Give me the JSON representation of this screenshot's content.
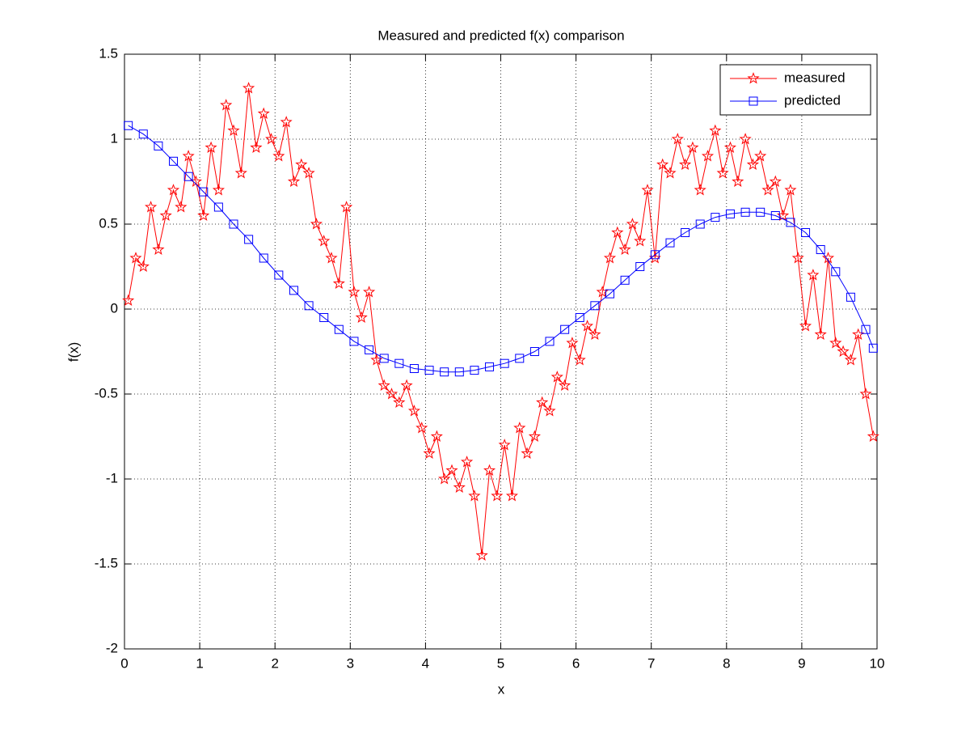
{
  "chart_data": {
    "type": "line",
    "title": "Measured and predicted f(x) comparison",
    "x_label": "x",
    "y_label": "f(x)",
    "xlim": [
      0,
      10
    ],
    "ylim": [
      -2,
      1.5
    ],
    "xticks": [
      0,
      1,
      2,
      3,
      4,
      5,
      6,
      7,
      8,
      9,
      10
    ],
    "yticks": [
      -2,
      -1.5,
      -1,
      -0.5,
      0,
      0.5,
      1,
      1.5
    ],
    "grid": true,
    "legend": "upper right",
    "series": [
      {
        "name": "measured",
        "color": "#ff0000",
        "marker": "star",
        "x": [
          0.05,
          0.15,
          0.25,
          0.35,
          0.45,
          0.55,
          0.65,
          0.75,
          0.85,
          0.95,
          1.05,
          1.15,
          1.25,
          1.35,
          1.45,
          1.55,
          1.65,
          1.75,
          1.85,
          1.95,
          2.05,
          2.15,
          2.25,
          2.35,
          2.45,
          2.55,
          2.65,
          2.75,
          2.85,
          2.95,
          3.05,
          3.15,
          3.25,
          3.35,
          3.45,
          3.55,
          3.65,
          3.75,
          3.85,
          3.95,
          4.05,
          4.15,
          4.25,
          4.35,
          4.45,
          4.55,
          4.65,
          4.75,
          4.85,
          4.95,
          5.05,
          5.15,
          5.25,
          5.35,
          5.45,
          5.55,
          5.65,
          5.75,
          5.85,
          5.95,
          6.05,
          6.15,
          6.25,
          6.35,
          6.45,
          6.55,
          6.65,
          6.75,
          6.85,
          6.95,
          7.05,
          7.15,
          7.25,
          7.35,
          7.45,
          7.55,
          7.65,
          7.75,
          7.85,
          7.95,
          8.05,
          8.15,
          8.25,
          8.35,
          8.45,
          8.55,
          8.65,
          8.75,
          8.85,
          8.95,
          9.05,
          9.15,
          9.25,
          9.35,
          9.45,
          9.55,
          9.65,
          9.75,
          9.85,
          9.95
        ],
        "values": [
          0.05,
          0.3,
          0.25,
          0.6,
          0.35,
          0.55,
          0.7,
          0.6,
          0.9,
          0.75,
          0.55,
          0.95,
          0.7,
          1.2,
          1.05,
          0.8,
          1.3,
          0.95,
          1.15,
          1.0,
          0.9,
          1.1,
          0.75,
          0.85,
          0.8,
          0.5,
          0.4,
          0.3,
          0.15,
          0.6,
          0.1,
          -0.05,
          0.1,
          -0.3,
          -0.45,
          -0.5,
          -0.55,
          -0.45,
          -0.6,
          -0.7,
          -0.85,
          -0.75,
          -1.0,
          -0.95,
          -1.05,
          -0.9,
          -1.1,
          -1.45,
          -0.95,
          -1.1,
          -0.8,
          -1.1,
          -0.7,
          -0.85,
          -0.75,
          -0.55,
          -0.6,
          -0.4,
          -0.45,
          -0.2,
          -0.3,
          -0.1,
          -0.15,
          0.1,
          0.3,
          0.45,
          0.35,
          0.5,
          0.4,
          0.7,
          0.3,
          0.85,
          0.8,
          1.0,
          0.85,
          0.95,
          0.7,
          0.9,
          1.05,
          0.8,
          0.95,
          0.75,
          1.0,
          0.85,
          0.9,
          0.7,
          0.75,
          0.55,
          0.7,
          0.3,
          -0.1,
          0.2,
          -0.15,
          0.3,
          -0.2,
          -0.25,
          -0.3,
          -0.15,
          -0.5,
          -0.75
        ]
      },
      {
        "name": "predicted",
        "color": "#0000ff",
        "marker": "square",
        "x": [
          0.05,
          0.25,
          0.45,
          0.65,
          0.85,
          1.05,
          1.25,
          1.45,
          1.65,
          1.85,
          2.05,
          2.25,
          2.45,
          2.65,
          2.85,
          3.05,
          3.25,
          3.45,
          3.65,
          3.85,
          4.05,
          4.25,
          4.45,
          4.65,
          4.85,
          5.05,
          5.25,
          5.45,
          5.65,
          5.85,
          6.05,
          6.25,
          6.45,
          6.65,
          6.85,
          7.05,
          7.25,
          7.45,
          7.65,
          7.85,
          8.05,
          8.25,
          8.45,
          8.65,
          8.85,
          9.05,
          9.25,
          9.45,
          9.65,
          9.85,
          9.95
        ],
        "values": [
          1.08,
          1.03,
          0.96,
          0.87,
          0.78,
          0.69,
          0.6,
          0.5,
          0.41,
          0.3,
          0.2,
          0.11,
          0.02,
          -0.05,
          -0.12,
          -0.19,
          -0.24,
          -0.29,
          -0.32,
          -0.35,
          -0.36,
          -0.37,
          -0.37,
          -0.36,
          -0.34,
          -0.32,
          -0.29,
          -0.25,
          -0.19,
          -0.12,
          -0.05,
          0.02,
          0.09,
          0.17,
          0.25,
          0.32,
          0.39,
          0.45,
          0.5,
          0.54,
          0.56,
          0.57,
          0.57,
          0.55,
          0.51,
          0.45,
          0.35,
          0.22,
          0.07,
          -0.12,
          -0.23
        ]
      }
    ]
  }
}
